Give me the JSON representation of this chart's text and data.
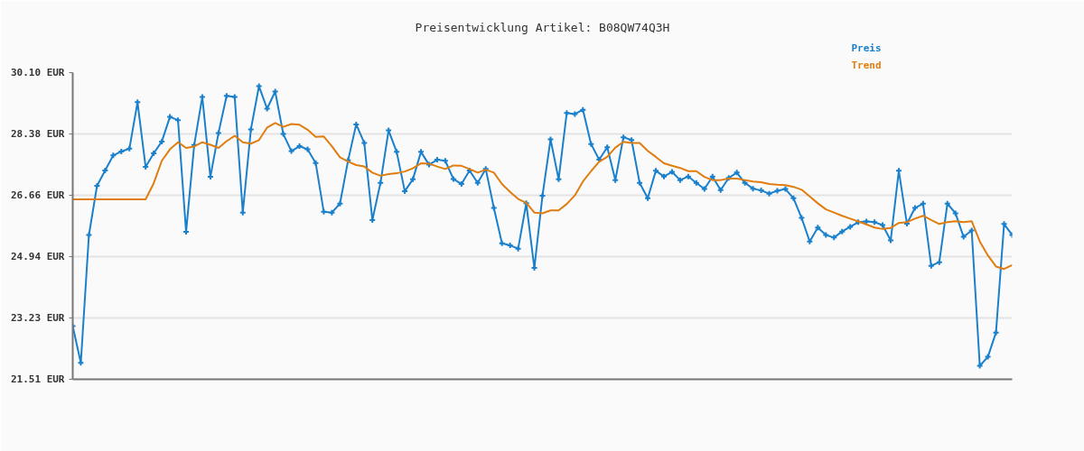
{
  "chart_data": {
    "type": "line",
    "title": "Preisentwicklung Artikel: B08QW74Q3H",
    "categories": [
      null,
      null,
      null,
      null,
      null,
      null,
      null,
      null,
      null,
      null,
      null,
      null,
      null,
      null,
      null,
      null,
      null,
      null,
      null,
      null,
      null,
      null,
      null,
      null,
      null,
      null,
      null,
      null,
      null,
      null,
      null,
      null,
      null,
      null,
      null,
      null,
      null,
      null,
      null,
      null,
      null,
      null,
      null,
      null,
      null,
      null,
      null,
      null,
      null,
      null,
      null,
      null,
      null,
      null,
      null,
      null,
      null,
      null,
      null,
      null,
      null,
      null,
      null,
      null,
      null,
      null,
      null,
      null,
      null,
      null,
      null,
      null,
      null,
      null,
      null,
      null,
      null,
      null,
      null,
      null,
      null,
      null,
      null,
      null,
      null,
      null,
      null,
      null,
      null,
      null,
      null,
      null,
      null,
      null,
      null,
      null,
      null,
      null,
      null,
      null,
      null,
      null,
      null,
      null,
      null,
      null,
      null,
      null,
      null,
      null,
      null,
      null,
      null,
      null,
      null,
      null,
      null
    ],
    "series": [
      {
        "name": "Preis",
        "color": "#1a80cc",
        "marker": "cross",
        "values": [
          23.0,
          21.97,
          25.55,
          26.93,
          27.36,
          27.78,
          27.89,
          27.97,
          29.27,
          27.46,
          27.84,
          28.17,
          28.86,
          28.77,
          25.64,
          28.07,
          29.42,
          27.18,
          28.41,
          29.45,
          29.42,
          26.18,
          28.51,
          29.72,
          29.09,
          29.57,
          28.38,
          27.9,
          28.04,
          27.95,
          27.57,
          26.2,
          26.18,
          26.43,
          27.64,
          28.65,
          28.13,
          25.97,
          27.01,
          28.48,
          27.88,
          26.78,
          27.11,
          27.88,
          27.52,
          27.66,
          27.63,
          27.12,
          26.98,
          27.36,
          27.01,
          27.4,
          26.31,
          25.32,
          25.26,
          25.17,
          26.44,
          24.63,
          26.65,
          28.23,
          27.11,
          28.97,
          28.94,
          29.06,
          28.1,
          27.66,
          28.01,
          27.09,
          28.29,
          28.21,
          27.01,
          26.58,
          27.35,
          27.19,
          27.32,
          27.09,
          27.19,
          27.01,
          26.84,
          27.19,
          26.81,
          27.15,
          27.3,
          27.01,
          26.85,
          26.8,
          26.71,
          26.79,
          26.84,
          26.58,
          26.03,
          25.37,
          25.76,
          25.55,
          25.48,
          25.65,
          25.78,
          25.91,
          25.93,
          25.91,
          25.83,
          25.4,
          27.35,
          25.87,
          26.31,
          26.43,
          24.69,
          24.79,
          26.43,
          26.16,
          25.5,
          25.68,
          21.89,
          22.14,
          22.82,
          25.86,
          25.55
        ]
      },
      {
        "name": "Trend",
        "color": "#e07d10",
        "marker": "none",
        "values": [
          26.55,
          26.55,
          26.55,
          26.55,
          26.55,
          26.55,
          26.55,
          26.55,
          26.55,
          26.55,
          27.0,
          27.63,
          27.95,
          28.15,
          27.99,
          28.03,
          28.15,
          28.08,
          27.99,
          28.18,
          28.33,
          28.15,
          28.11,
          28.21,
          28.56,
          28.69,
          28.58,
          28.66,
          28.64,
          28.5,
          28.3,
          28.31,
          28.04,
          27.73,
          27.61,
          27.51,
          27.47,
          27.3,
          27.21,
          27.26,
          27.28,
          27.33,
          27.42,
          27.56,
          27.55,
          27.47,
          27.4,
          27.5,
          27.49,
          27.4,
          27.3,
          27.38,
          27.3,
          26.98,
          26.76,
          26.56,
          26.45,
          26.18,
          26.16,
          26.24,
          26.24,
          26.42,
          26.66,
          27.05,
          27.34,
          27.6,
          27.74,
          28.0,
          28.16,
          28.13,
          28.13,
          27.91,
          27.74,
          27.56,
          27.49,
          27.43,
          27.34,
          27.34,
          27.18,
          27.09,
          27.09,
          27.13,
          27.13,
          27.09,
          27.05,
          27.03,
          26.98,
          26.96,
          26.95,
          26.9,
          26.82,
          26.63,
          26.44,
          26.27,
          26.18,
          26.09,
          26.01,
          25.93,
          25.85,
          25.76,
          25.72,
          25.75,
          25.89,
          25.91,
          26.01,
          26.09,
          25.97,
          25.86,
          25.91,
          25.94,
          25.91,
          25.94,
          25.37,
          24.98,
          24.67,
          24.6,
          24.71
        ]
      }
    ],
    "ylim": [
      21.51,
      30.1
    ],
    "yticks": [
      {
        "value": 30.1,
        "label": "30.10 EUR"
      },
      {
        "value": 28.38,
        "label": "28.38 EUR"
      },
      {
        "value": 26.66,
        "label": "26.66 EUR"
      },
      {
        "value": 24.94,
        "label": "24.94 EUR"
      },
      {
        "value": 23.23,
        "label": "23.23 EUR"
      },
      {
        "value": 21.51,
        "label": "21.51 EUR"
      }
    ],
    "grid": "y",
    "line_style": "solid"
  }
}
